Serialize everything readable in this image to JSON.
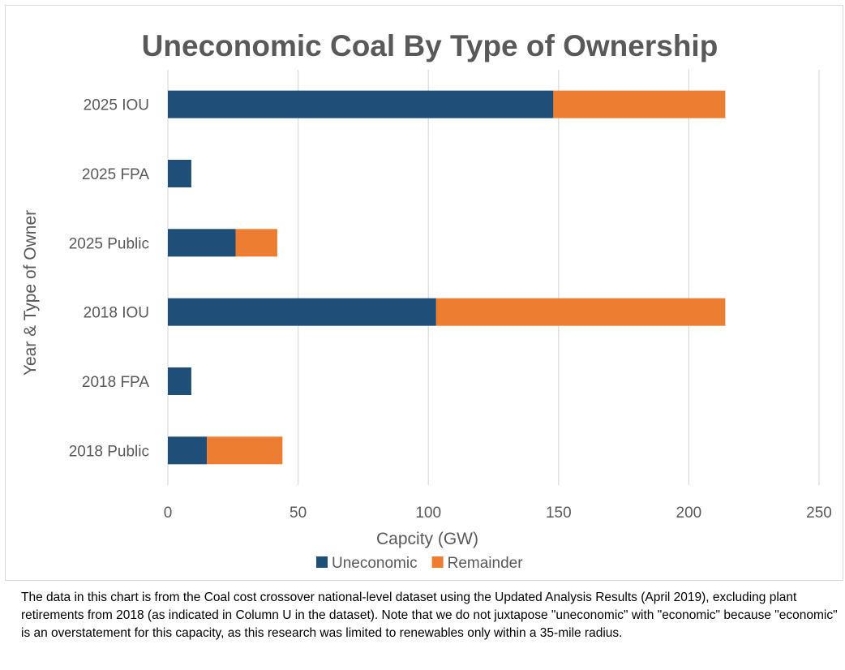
{
  "chart_data": {
    "type": "bar",
    "orientation": "horizontal",
    "stacked": true,
    "title": "Uneconomic Coal By Type of Ownership",
    "xlabel": "Capcity (GW)",
    "ylabel": "Year & Type of Owner",
    "categories": [
      "2025 IOU",
      "2025 FPA",
      "2025 Public",
      "2018 IOU",
      "2018 FPA",
      "2018 Public"
    ],
    "series": [
      {
        "name": "Uneconomic",
        "color": "#1f4e79",
        "values": [
          148,
          9,
          26,
          103,
          9,
          15
        ]
      },
      {
        "name": "Remainder",
        "color": "#ed7d31",
        "values": [
          66,
          0,
          16,
          111,
          0,
          29
        ]
      }
    ],
    "xlim": [
      0,
      250
    ],
    "xticks": [
      "0",
      "50",
      "100",
      "150",
      "200",
      "250"
    ],
    "grid": "vertical",
    "legend_position": "bottom"
  },
  "note": "The data in this chart is from the Coal cost crossover national-level dataset using the Updated Analysis Results (April 2019), excluding plant retirements from 2018 (as indicated in Column U in the dataset). Note that we do not juxtapose \"uneconomic\" with \"economic\" because \"economic\" is an overstatement for this capacity, as this research was limited to renewables only within a 35-mile radius."
}
